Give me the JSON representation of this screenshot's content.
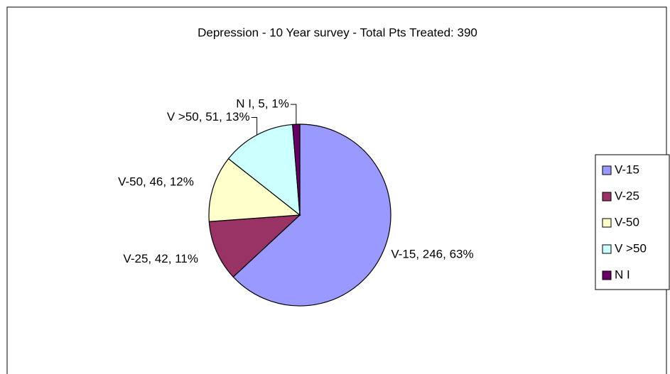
{
  "chart_data": {
    "type": "pie",
    "title": "Depression - 10 Year survey - Total Pts Treated: 390",
    "categories": [
      "V-15",
      "V-25",
      "V-50",
      "V >50",
      "N I"
    ],
    "values": [
      246,
      42,
      46,
      51,
      5
    ],
    "value_labels": [
      "V-15, 246, 63%",
      "V-25, 42, 11%",
      "V-50, 46, 12%",
      "V >50, 51, 13%",
      "N I, 5, 1%"
    ],
    "colors": [
      "#9999ff",
      "#993366",
      "#ffffcc",
      "#ccffff",
      "#660066"
    ],
    "legend": "right"
  }
}
